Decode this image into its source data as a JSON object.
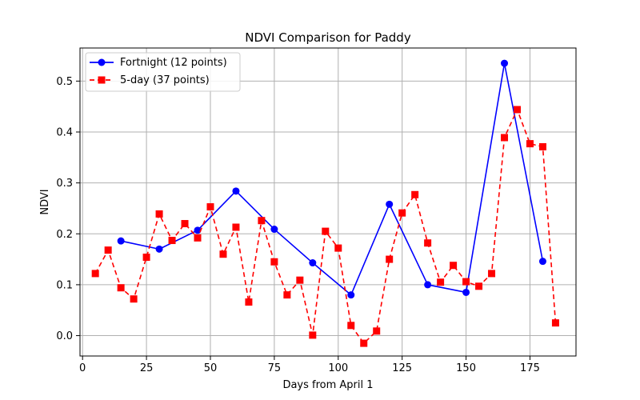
{
  "chart_data": {
    "type": "line",
    "title": "NDVI Comparison for Paddy",
    "xlabel": "Days from April 1",
    "ylabel": "NDVI",
    "xlim": [
      -1,
      193
    ],
    "ylim": [
      -0.04,
      0.565
    ],
    "x_ticks": [
      0,
      25,
      50,
      75,
      100,
      125,
      150,
      175
    ],
    "y_ticks": [
      0.0,
      0.1,
      0.2,
      0.3,
      0.4,
      0.5
    ],
    "x_tick_labels": [
      "0",
      "25",
      "50",
      "75",
      "100",
      "125",
      "150",
      "175"
    ],
    "y_tick_labels": [
      "0.0",
      "0.1",
      "0.2",
      "0.3",
      "0.4",
      "0.5"
    ],
    "grid": true,
    "legend_position": "upper-left",
    "series": [
      {
        "name": "Fortnight (12 points)",
        "color": "#0000ff",
        "line_style": "solid",
        "marker": "circle",
        "x": [
          15,
          30,
          45,
          60,
          75,
          90,
          105,
          120,
          135,
          150,
          165,
          180
        ],
        "y": [
          0.186,
          0.17,
          0.207,
          0.284,
          0.209,
          0.143,
          0.08,
          0.258,
          0.1,
          0.085,
          0.535,
          0.146
        ]
      },
      {
        "name": "5-day (37 points)",
        "color": "#ff0000",
        "line_style": "dashed",
        "marker": "square",
        "x": [
          5,
          10,
          15,
          20,
          25,
          30,
          35,
          40,
          45,
          50,
          55,
          60,
          65,
          70,
          75,
          80,
          85,
          90,
          95,
          100,
          105,
          110,
          115,
          120,
          125,
          130,
          135,
          140,
          145,
          150,
          155,
          160,
          165,
          170,
          175,
          180,
          185
        ],
        "y": [
          0.122,
          0.168,
          0.094,
          0.072,
          0.154,
          0.239,
          0.187,
          0.22,
          0.192,
          0.253,
          0.16,
          0.213,
          0.066,
          0.226,
          0.145,
          0.08,
          0.109,
          0.001,
          0.205,
          0.172,
          0.02,
          -0.015,
          0.009,
          0.15,
          0.241,
          0.277,
          0.182,
          0.105,
          0.138,
          0.106,
          0.097,
          0.122,
          0.389,
          0.444,
          0.377,
          0.371,
          0.025
        ]
      }
    ]
  }
}
